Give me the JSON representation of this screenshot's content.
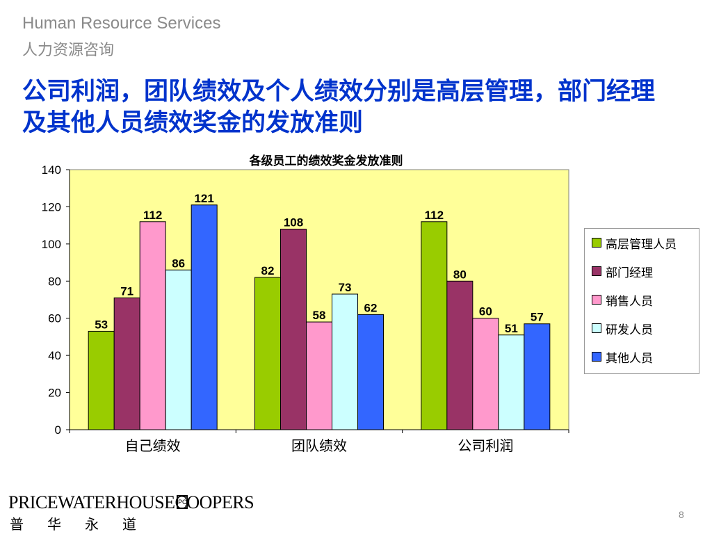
{
  "header": {
    "en": "Human Resource Services",
    "cn": "人力资源咨询"
  },
  "slide_title": "公司利润，团队绩效及个人绩效分别是高层管理，部门经理及其他人员绩效奖金的发放准则",
  "chart_data": {
    "type": "bar",
    "title": "各级员工的绩效奖金发放准则",
    "categories": [
      "自己绩效",
      "团队绩效",
      "公司利润"
    ],
    "series": [
      {
        "name": "高层管理人员",
        "color": "#99cc00",
        "values": [
          53,
          82,
          112
        ]
      },
      {
        "name": "部门经理",
        "color": "#993366",
        "values": [
          71,
          108,
          80
        ]
      },
      {
        "name": "销售人员",
        "color": "#ff99cc",
        "values": [
          112,
          58,
          60
        ]
      },
      {
        "name": "研发人员",
        "color": "#ccffff",
        "values": [
          86,
          73,
          51
        ]
      },
      {
        "name": "其他人员",
        "color": "#3366ff",
        "values": [
          121,
          62,
          57
        ]
      }
    ],
    "ylim": [
      0,
      140
    ],
    "yticks": [
      0,
      20,
      40,
      60,
      80,
      100,
      120,
      140
    ],
    "grid": false,
    "legend": "right",
    "plot_background": "#ffff99"
  },
  "footer": {
    "logo_word": "PRICEWATERHOUSECOOPERS",
    "logo_cn": "普华永道",
    "page_number": "8"
  }
}
